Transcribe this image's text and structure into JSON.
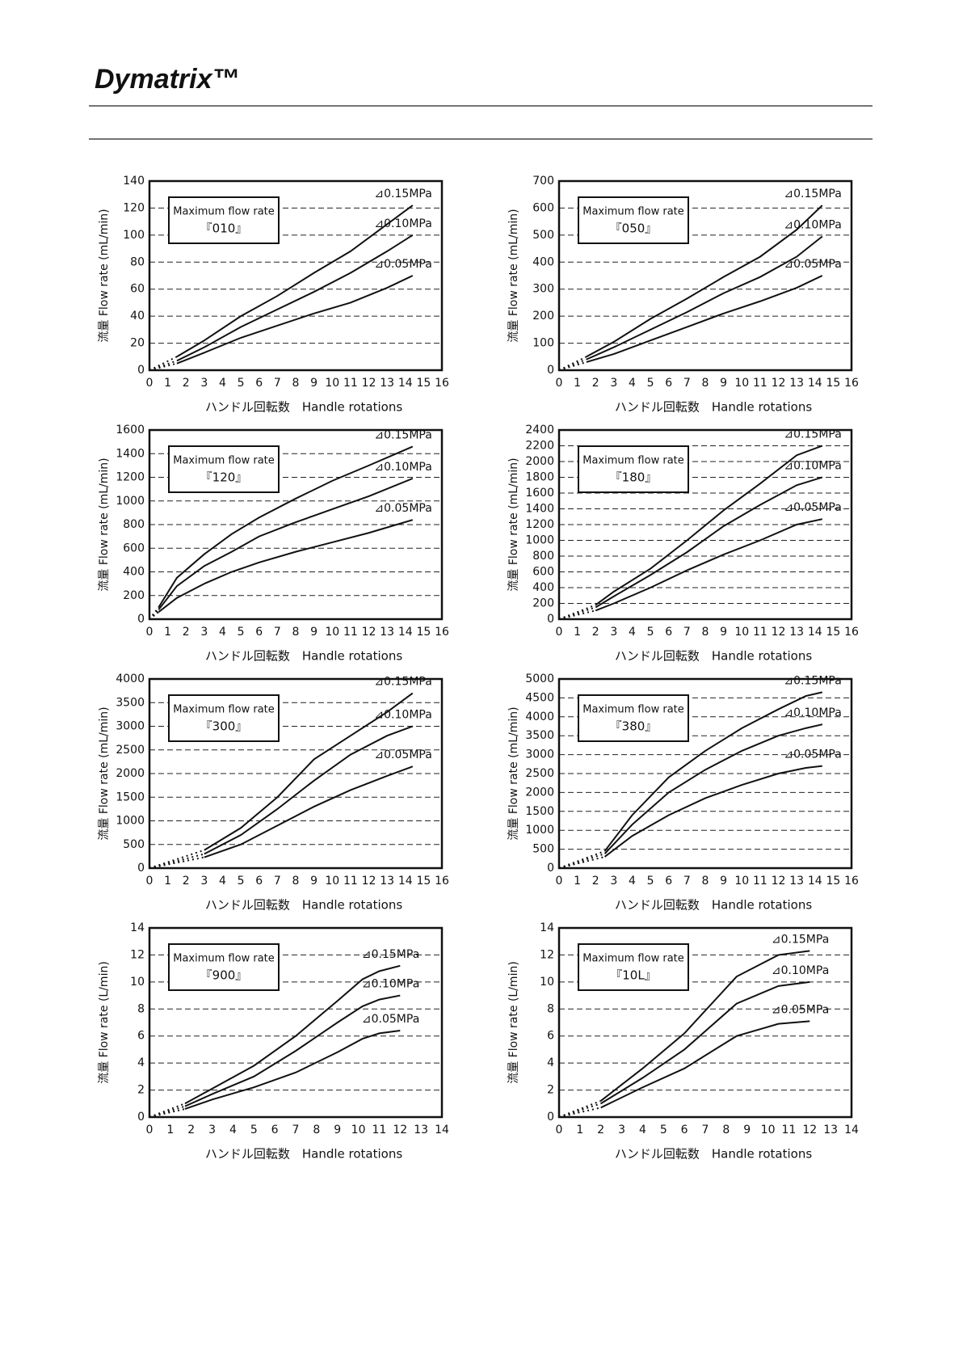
{
  "header": {
    "brand": "Dymatrix™"
  },
  "chart_data": [
    {
      "type": "line",
      "box_title": "Maximum flow rate",
      "box_label": "『010』",
      "y_label": "流量 Flow rate (mL/min)",
      "x_label": "ハンドル回転数　Handle rotations",
      "xlim": [
        0,
        16
      ],
      "xticks": [
        0,
        1,
        2,
        3,
        4,
        5,
        6,
        7,
        8,
        9,
        10,
        11,
        12,
        13,
        14,
        15,
        16
      ],
      "ylim": [
        0,
        140
      ],
      "yticks": [
        0,
        20,
        40,
        60,
        80,
        100,
        120,
        140
      ],
      "grid": true,
      "dotted_start": true,
      "x": [
        0,
        1.5,
        3,
        5,
        7,
        9,
        11,
        13,
        14.4
      ],
      "series": [
        {
          "name": "⊿0.15MPa",
          "color": "#111",
          "values": [
            0,
            10,
            22,
            40,
            55,
            72,
            88,
            108,
            122
          ]
        },
        {
          "name": "⊿0.10MPa",
          "color": "#111",
          "values": [
            0,
            7,
            17,
            32,
            45,
            58,
            72,
            88,
            100
          ]
        },
        {
          "name": "⊿0.05MPa",
          "color": "#111",
          "values": [
            0,
            5,
            13,
            24,
            33,
            42,
            50,
            61,
            70
          ]
        }
      ]
    },
    {
      "type": "line",
      "box_title": "Maximum flow rate",
      "box_label": "『050』",
      "y_label": "流量 Flow rate (mL/min)",
      "x_label": "ハンドル回転数　Handle rotations",
      "xlim": [
        0,
        16
      ],
      "xticks": [
        0,
        1,
        2,
        3,
        4,
        5,
        6,
        7,
        8,
        9,
        10,
        11,
        12,
        13,
        14,
        15,
        16
      ],
      "ylim": [
        0,
        700
      ],
      "yticks": [
        0,
        100,
        200,
        300,
        400,
        500,
        600,
        700
      ],
      "grid": true,
      "dotted_start": true,
      "x": [
        0,
        1.5,
        3,
        5,
        7,
        9,
        11,
        13,
        14.4
      ],
      "series": [
        {
          "name": "⊿0.15MPa",
          "color": "#111",
          "values": [
            0,
            50,
            105,
            190,
            265,
            345,
            420,
            520,
            610
          ]
        },
        {
          "name": "⊿0.10MPa",
          "color": "#111",
          "values": [
            0,
            40,
            85,
            150,
            215,
            285,
            345,
            420,
            495
          ]
        },
        {
          "name": "⊿0.05MPa",
          "color": "#111",
          "values": [
            0,
            30,
            60,
            110,
            160,
            210,
            255,
            305,
            350
          ]
        }
      ]
    },
    {
      "type": "line",
      "box_title": "Maximum flow rate",
      "box_label": "『120』",
      "y_label": "流量 Flow rate (mL/min)",
      "x_label": "ハンドル回転数　Handle rotations",
      "xlim": [
        0,
        16
      ],
      "xticks": [
        0,
        1,
        2,
        3,
        4,
        5,
        6,
        7,
        8,
        9,
        10,
        11,
        12,
        13,
        14,
        15,
        16
      ],
      "ylim": [
        0,
        1600
      ],
      "yticks": [
        0,
        200,
        400,
        600,
        800,
        1000,
        1200,
        1400,
        1600
      ],
      "grid": true,
      "dotted_start": true,
      "x": [
        0,
        0.5,
        1.5,
        3,
        4.5,
        6,
        8,
        10,
        12,
        14.4
      ],
      "series": [
        {
          "name": "⊿0.15MPa",
          "color": "#111",
          "values": [
            0,
            100,
            350,
            550,
            720,
            860,
            1020,
            1170,
            1300,
            1460
          ]
        },
        {
          "name": "⊿0.10MPa",
          "color": "#111",
          "values": [
            0,
            80,
            280,
            450,
            570,
            700,
            820,
            930,
            1040,
            1190
          ]
        },
        {
          "name": "⊿0.05MPa",
          "color": "#111",
          "values": [
            0,
            60,
            180,
            300,
            400,
            480,
            570,
            650,
            730,
            840
          ]
        }
      ]
    },
    {
      "type": "line",
      "box_title": "Maximum flow rate",
      "box_label": "『180』",
      "y_label": "流量 Flow rate (mL/min)",
      "x_label": "ハンドル回転数　Handle rotations",
      "xlim": [
        0,
        16
      ],
      "xticks": [
        0,
        1,
        2,
        3,
        4,
        5,
        6,
        7,
        8,
        9,
        10,
        11,
        12,
        13,
        14,
        15,
        16
      ],
      "ylim": [
        0,
        2400
      ],
      "yticks": [
        0,
        200,
        400,
        600,
        800,
        1000,
        1200,
        1400,
        1600,
        1800,
        2000,
        2200,
        2400
      ],
      "grid": true,
      "dotted_start": true,
      "x": [
        0,
        2,
        3,
        5,
        7,
        9,
        11,
        13,
        14.4
      ],
      "series": [
        {
          "name": "⊿0.15MPa",
          "color": "#111",
          "values": [
            0,
            180,
            350,
            640,
            1000,
            1380,
            1720,
            2080,
            2200
          ]
        },
        {
          "name": "⊿0.10MPa",
          "color": "#111",
          "values": [
            0,
            150,
            290,
            560,
            850,
            1180,
            1450,
            1700,
            1800
          ]
        },
        {
          "name": "⊿0.05MPa",
          "color": "#111",
          "values": [
            0,
            110,
            200,
            400,
            620,
            820,
            1000,
            1200,
            1270
          ]
        }
      ]
    },
    {
      "type": "line",
      "box_title": "Maximum flow rate",
      "box_label": "『300』",
      "y_label": "流量 Flow rate (mL/min)",
      "x_label": "ハンドル回転数　Handle rotations",
      "xlim": [
        0,
        16
      ],
      "xticks": [
        0,
        1,
        2,
        3,
        4,
        5,
        6,
        7,
        8,
        9,
        10,
        11,
        12,
        13,
        14,
        15,
        16
      ],
      "ylim": [
        0,
        4000
      ],
      "yticks": [
        0,
        500,
        1000,
        1500,
        2000,
        2500,
        3000,
        3500,
        4000
      ],
      "grid": true,
      "dotted_start": true,
      "x": [
        0,
        3,
        5,
        7,
        9,
        11,
        13,
        14.4
      ],
      "series": [
        {
          "name": "⊿0.15MPa",
          "color": "#111",
          "values": [
            0,
            380,
            850,
            1500,
            2300,
            2800,
            3300,
            3700
          ]
        },
        {
          "name": "⊿0.10MPa",
          "color": "#111",
          "values": [
            0,
            300,
            700,
            1250,
            1850,
            2400,
            2800,
            3000
          ]
        },
        {
          "name": "⊿0.05MPa",
          "color": "#111",
          "values": [
            0,
            230,
            500,
            900,
            1300,
            1650,
            1950,
            2150
          ]
        }
      ]
    },
    {
      "type": "line",
      "box_title": "Maximum flow rate",
      "box_label": "『380』",
      "y_label": "流量 Flow rate (mL/min)",
      "x_label": "ハンドル回転数　Handle rotations",
      "xlim": [
        0,
        16
      ],
      "xticks": [
        0,
        1,
        2,
        3,
        4,
        5,
        6,
        7,
        8,
        9,
        10,
        11,
        12,
        13,
        14,
        15,
        16
      ],
      "ylim": [
        0,
        5000
      ],
      "yticks": [
        0,
        500,
        1000,
        1500,
        2000,
        2500,
        3000,
        3500,
        4000,
        4500,
        5000
      ],
      "grid": true,
      "dotted_start": true,
      "x": [
        0,
        2.5,
        4,
        6,
        8,
        10,
        12,
        13.5,
        14.4
      ],
      "series": [
        {
          "name": "⊿0.15MPa",
          "color": "#111",
          "values": [
            0,
            450,
            1400,
            2400,
            3100,
            3700,
            4200,
            4550,
            4650
          ]
        },
        {
          "name": "⊿0.10MPa",
          "color": "#111",
          "values": [
            0,
            380,
            1150,
            2000,
            2600,
            3100,
            3500,
            3700,
            3800
          ]
        },
        {
          "name": "⊿0.05MPa",
          "color": "#111",
          "values": [
            0,
            300,
            850,
            1400,
            1850,
            2200,
            2500,
            2650,
            2700
          ]
        }
      ]
    },
    {
      "type": "line",
      "box_title": "Maximum flow rate",
      "box_label": "『900』",
      "y_label": "流量 Flow rate (L/min)",
      "x_label": "ハンドル回転数　Handle rotations",
      "xlim": [
        0,
        14
      ],
      "xticks": [
        0,
        1,
        2,
        3,
        4,
        5,
        6,
        7,
        8,
        9,
        10,
        11,
        12,
        13,
        14
      ],
      "ylim": [
        0,
        14
      ],
      "yticks": [
        0,
        2,
        4,
        6,
        8,
        10,
        12,
        14
      ],
      "grid": true,
      "dotted_start": true,
      "x": [
        0,
        1.7,
        3,
        5,
        7,
        9,
        10.2,
        11,
        12
      ],
      "series": [
        {
          "name": "⊿0.15MPa",
          "color": "#111",
          "values": [
            0,
            1.0,
            2.1,
            3.8,
            6.0,
            8.6,
            10.2,
            10.8,
            11.2
          ]
        },
        {
          "name": "⊿0.10MPa",
          "color": "#111",
          "values": [
            0,
            0.8,
            1.7,
            3.0,
            4.9,
            7.0,
            8.2,
            8.7,
            9.0
          ]
        },
        {
          "name": "⊿0.05MPa",
          "color": "#111",
          "values": [
            0,
            0.6,
            1.3,
            2.2,
            3.3,
            4.8,
            5.8,
            6.2,
            6.4
          ]
        }
      ]
    },
    {
      "type": "line",
      "box_title": "Maximum flow rate",
      "box_label": "『10L』",
      "y_label": "流量 Flow rate (L/min)",
      "x_label": "ハンドル回転数　Handle rotations",
      "xlim": [
        0,
        14
      ],
      "xticks": [
        0,
        1,
        2,
        3,
        4,
        5,
        6,
        7,
        8,
        9,
        10,
        11,
        12,
        13,
        14
      ],
      "ylim": [
        0,
        14
      ],
      "yticks": [
        0,
        2,
        4,
        6,
        8,
        10,
        12,
        14
      ],
      "grid": true,
      "dotted_start": true,
      "x": [
        0,
        2,
        4,
        6,
        8.5,
        10.5,
        12
      ],
      "series": [
        {
          "name": "⊿0.15MPa",
          "color": "#111",
          "values": [
            0,
            1.2,
            3.6,
            6.2,
            10.4,
            12.0,
            12.3
          ]
        },
        {
          "name": "⊿0.10MPa",
          "color": "#111",
          "values": [
            0,
            1.0,
            2.9,
            5.0,
            8.4,
            9.7,
            10.0
          ]
        },
        {
          "name": "⊿0.05MPa",
          "color": "#111",
          "values": [
            0,
            0.7,
            2.2,
            3.6,
            6.0,
            6.9,
            7.1
          ]
        }
      ]
    }
  ]
}
